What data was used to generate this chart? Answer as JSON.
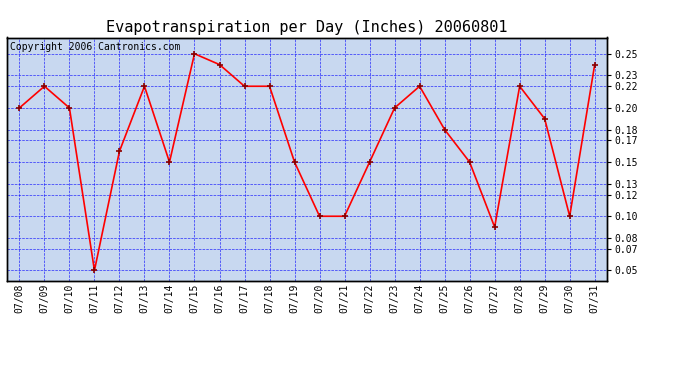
{
  "title": "Evapotranspiration per Day (Inches) 20060801",
  "copyright": "Copyright 2006 Cantronics.com",
  "x_labels": [
    "07/08",
    "07/09",
    "07/10",
    "07/11",
    "07/12",
    "07/13",
    "07/14",
    "07/15",
    "07/16",
    "07/17",
    "07/18",
    "07/19",
    "07/20",
    "07/21",
    "07/22",
    "07/23",
    "07/24",
    "07/25",
    "07/26",
    "07/27",
    "07/28",
    "07/29",
    "07/30",
    "07/31"
  ],
  "y_values": [
    0.2,
    0.22,
    0.2,
    0.05,
    0.16,
    0.22,
    0.15,
    0.25,
    0.24,
    0.22,
    0.22,
    0.15,
    0.1,
    0.1,
    0.15,
    0.2,
    0.22,
    0.18,
    0.15,
    0.09,
    0.22,
    0.19,
    0.1,
    0.24
  ],
  "y_ticks": [
    0.05,
    0.07,
    0.08,
    0.1,
    0.12,
    0.13,
    0.15,
    0.17,
    0.18,
    0.2,
    0.22,
    0.23,
    0.25
  ],
  "ylim": [
    0.04,
    0.265
  ],
  "line_color": "red",
  "marker_color": "darkred",
  "bg_color": "#c8d8f0",
  "grid_color": "blue",
  "title_fontsize": 11,
  "copyright_fontsize": 7,
  "tick_fontsize": 7
}
